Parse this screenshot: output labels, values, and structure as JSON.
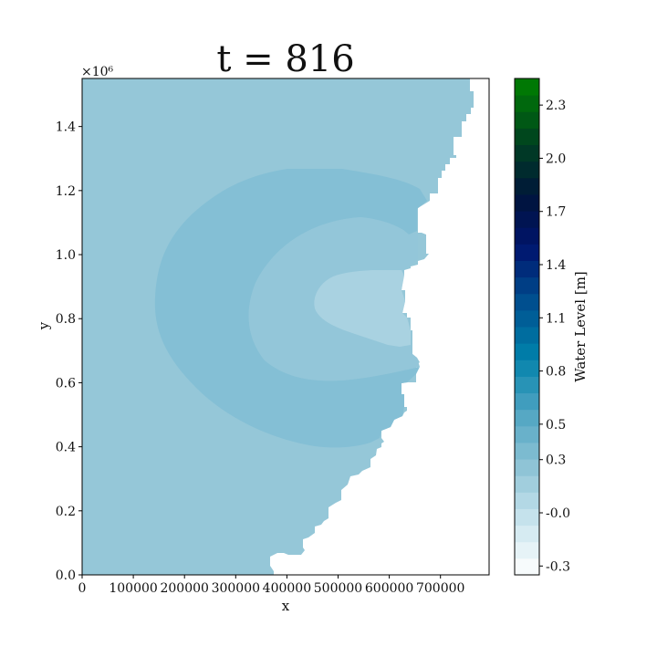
{
  "chart_data": {
    "type": "heatmap",
    "title": "t = 816",
    "xlabel": "x",
    "ylabel": "y",
    "xlim": [
      0,
      795000
    ],
    "ylim": [
      0,
      1550000
    ],
    "x_ticks": [
      0,
      100000,
      200000,
      300000,
      400000,
      500000,
      600000,
      700000
    ],
    "x_tick_labels": [
      "0",
      "100000",
      "200000",
      "300000",
      "400000",
      "500000",
      "600000",
      "700000"
    ],
    "y_ticks": [
      0,
      200000,
      400000,
      600000,
      800000,
      1000000,
      1200000,
      1400000
    ],
    "y_tick_labels": [
      "0.0",
      "0.2",
      "0.4",
      "0.6",
      "0.8",
      "1.0",
      "1.2",
      "1.4"
    ],
    "y_offset_label": "×10⁶",
    "colorbar": {
      "label": "Water Level [m]",
      "range": [
        -0.35,
        2.45
      ],
      "ticks": [
        -0.3,
        0.0,
        0.3,
        0.5,
        0.8,
        1.1,
        1.4,
        1.7,
        2.0,
        2.3
      ],
      "tick_labels": [
        "-0.3",
        "-0.0",
        "0.3",
        "0.5",
        "0.8",
        "1.1",
        "1.4",
        "1.7",
        "2.0",
        "2.3"
      ],
      "colormap": "ocean_r",
      "levels": 30
    },
    "regions": [
      {
        "level": 0.1,
        "color": "#95c7d8",
        "shape": "domain"
      },
      {
        "level": 0.15,
        "color": "#84bfd5",
        "shape": "outer-ring"
      },
      {
        "level": 0.1,
        "color": "#93c6d9",
        "shape": "inner-ring"
      },
      {
        "level": 0.02,
        "color": "#a9d2e1",
        "shape": "core"
      }
    ]
  }
}
